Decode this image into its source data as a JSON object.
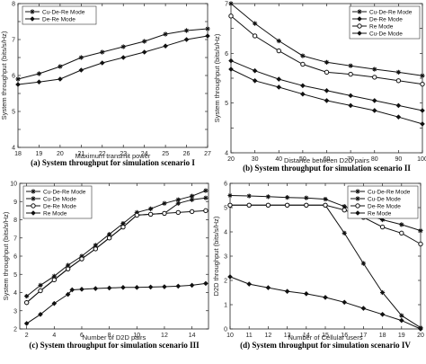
{
  "chart_data": [
    {
      "type": "line",
      "caption": "(a) System throughput for simulation scenario I",
      "xlabel": "Maximum transmit power",
      "ylabel": "System throughput (bits/s/Hz)",
      "xlim": [
        18,
        27
      ],
      "ylim": [
        4,
        8
      ],
      "xticks": [
        18,
        19,
        20,
        21,
        22,
        23,
        24,
        25,
        26,
        27
      ],
      "yticks": [
        4,
        4.5,
        5,
        5.5,
        6,
        6.5,
        7,
        7.5,
        8
      ],
      "yticklabels": [
        "4",
        "",
        "5",
        "",
        "6",
        "",
        "7",
        "",
        "8"
      ],
      "legend_position": "top-left",
      "series": [
        {
          "name": "Cu-De-Re Mode",
          "marker": "star",
          "x": [
            18,
            19,
            20,
            21,
            22,
            23,
            24,
            25,
            26,
            27
          ],
          "y": [
            5.9,
            6.05,
            6.25,
            6.5,
            6.65,
            6.8,
            6.95,
            7.15,
            7.25,
            7.3
          ]
        },
        {
          "name": "De-Re Mode",
          "marker": "diamond",
          "x": [
            18,
            19,
            20,
            21,
            22,
            23,
            24,
            25,
            26,
            27
          ],
          "y": [
            5.75,
            5.82,
            5.9,
            6.15,
            6.35,
            6.5,
            6.65,
            6.82,
            7.0,
            7.1
          ]
        }
      ]
    },
    {
      "type": "line",
      "caption": "(b) System throughput for simulation scenario II",
      "xlabel": "Distance between D2D pairs",
      "ylabel": "System throughput (bits/s/Hz)",
      "xlim": [
        20,
        100
      ],
      "ylim": [
        4,
        7
      ],
      "xticks": [
        20,
        30,
        40,
        50,
        60,
        70,
        80,
        90,
        100
      ],
      "yticks": [
        4,
        4.5,
        5,
        5.5,
        6,
        6.5,
        7
      ],
      "yticklabels": [
        "4",
        "",
        "5",
        "",
        "6",
        "",
        "7"
      ],
      "legend_position": "top-right",
      "series": [
        {
          "name": "Cu-De-Re Mode",
          "marker": "star",
          "x": [
            20,
            30,
            40,
            50,
            60,
            70,
            80,
            90,
            100
          ],
          "y": [
            7.0,
            6.6,
            6.25,
            5.95,
            5.82,
            5.75,
            5.68,
            5.62,
            5.55
          ]
        },
        {
          "name": "De-Re Mode",
          "marker": "diamond",
          "x": [
            20,
            30,
            40,
            50,
            60,
            70,
            80,
            90,
            100
          ],
          "y": [
            5.85,
            5.65,
            5.48,
            5.35,
            5.25,
            5.15,
            5.05,
            4.95,
            4.85
          ]
        },
        {
          "name": "Re Mode",
          "marker": "circle",
          "x": [
            20,
            30,
            40,
            50,
            60,
            70,
            80,
            90,
            100
          ],
          "y": [
            6.75,
            6.35,
            6.05,
            5.78,
            5.62,
            5.58,
            5.52,
            5.45,
            5.38
          ]
        },
        {
          "name": "Cu-De Mode",
          "marker": "diamond",
          "x": [
            20,
            30,
            40,
            50,
            60,
            70,
            80,
            90,
            100
          ],
          "y": [
            5.68,
            5.45,
            5.32,
            5.18,
            5.05,
            4.95,
            4.85,
            4.72,
            4.58
          ]
        }
      ]
    },
    {
      "type": "line",
      "caption": "(c) System throughput for simulation scenario III",
      "xlabel": "Number of D2D pairs",
      "ylabel": "System throughput (bits/s/Hz)",
      "xlim": [
        1.5,
        15.2
      ],
      "ylim": [
        2,
        10
      ],
      "xticks": [
        2,
        4,
        6,
        8,
        10,
        12,
        14
      ],
      "yticks": [
        2,
        3,
        4,
        5,
        6,
        7,
        8,
        9,
        10
      ],
      "legend_position": "top-left",
      "series": [
        {
          "name": "Cu-De-Re Mode",
          "marker": "star",
          "x": [
            2,
            3,
            4,
            5,
            6,
            7,
            8,
            9,
            10,
            11,
            12,
            13,
            14,
            15
          ],
          "y": [
            3.8,
            4.4,
            4.9,
            5.5,
            6.0,
            6.6,
            7.2,
            7.8,
            8.4,
            8.6,
            8.9,
            9.1,
            9.3,
            9.6
          ]
        },
        {
          "name": "Cu-De Mode",
          "marker": "star",
          "x": [
            2,
            3,
            4,
            5,
            6,
            7,
            8,
            9,
            10,
            11,
            12,
            13,
            14,
            15
          ],
          "y": [
            3.45,
            4.1,
            4.7,
            5.3,
            5.85,
            6.4,
            7.0,
            7.6,
            8.25,
            8.3,
            8.35,
            8.9,
            9.1,
            9.2
          ]
        },
        {
          "name": "De-Re Mode",
          "marker": "circle",
          "x": [
            2,
            3,
            4,
            5,
            6,
            7,
            8,
            9,
            10,
            11,
            12,
            13,
            14,
            15
          ],
          "y": [
            3.45,
            4.1,
            4.7,
            5.3,
            5.85,
            6.4,
            7.0,
            7.6,
            8.25,
            8.3,
            8.35,
            8.4,
            8.45,
            8.5
          ]
        },
        {
          "name": "Re Mode",
          "marker": "diamond",
          "x": [
            2,
            3,
            4,
            5,
            5.3,
            6,
            7,
            8,
            9,
            10,
            11,
            12,
            13,
            14,
            15
          ],
          "y": [
            2.3,
            2.8,
            3.4,
            3.9,
            4.15,
            4.18,
            4.22,
            4.25,
            4.28,
            4.28,
            4.3,
            4.32,
            4.35,
            4.4,
            4.5
          ]
        }
      ]
    },
    {
      "type": "line",
      "caption": "(d) System throughput for simulation scenario IV",
      "xlabel": "Number of Cellular users",
      "ylabel": "D2D throughput (bits/s/Hz)",
      "xlim": [
        10,
        20
      ],
      "ylim": [
        0,
        6
      ],
      "xticks": [
        10,
        11,
        12,
        13,
        14,
        15,
        16,
        17,
        18,
        19,
        20
      ],
      "yticks": [
        0,
        1,
        2,
        3,
        4,
        5,
        6
      ],
      "legend_position": "top-right",
      "series": [
        {
          "name": "Cu-De-Re Mode",
          "marker": "star",
          "x": [
            10,
            11,
            12,
            13,
            14,
            15,
            16,
            17,
            18,
            19,
            20
          ],
          "y": [
            5.5,
            5.48,
            5.45,
            5.42,
            5.4,
            5.35,
            5.05,
            4.75,
            4.5,
            4.3,
            4.05
          ]
        },
        {
          "name": "Cu-De Mode",
          "marker": "star",
          "x": [
            10,
            11,
            12,
            13,
            14,
            15,
            16,
            17,
            18,
            19,
            20
          ],
          "y": [
            5.1,
            5.1,
            5.1,
            5.1,
            5.1,
            5.1,
            3.95,
            2.7,
            1.5,
            0.55,
            0.05
          ]
        },
        {
          "name": "De-Re Mode",
          "marker": "circle",
          "x": [
            10,
            11,
            12,
            13,
            14,
            15,
            16,
            17,
            18,
            19,
            20
          ],
          "y": [
            5.1,
            5.1,
            5.1,
            5.1,
            5.1,
            5.1,
            4.9,
            4.6,
            4.2,
            3.95,
            3.5
          ]
        },
        {
          "name": "Re Mode",
          "marker": "diamond",
          "x": [
            10,
            11,
            12,
            13,
            14,
            15,
            16,
            17,
            18,
            19,
            20
          ],
          "y": [
            2.15,
            1.85,
            1.7,
            1.55,
            1.45,
            1.3,
            1.1,
            0.85,
            0.6,
            0.35,
            0.0
          ]
        }
      ]
    }
  ]
}
